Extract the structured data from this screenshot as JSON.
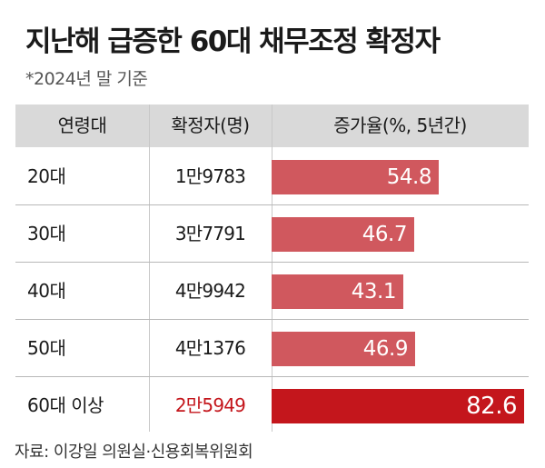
{
  "title": "지난해 급증한 60대 채무조정 확정자",
  "subtitle": "*2024년 말 기준",
  "source": "자료: 이강일 의원실·신용회복위원회",
  "colors": {
    "bar": "#d0585e",
    "highlight": "#c4161c",
    "header_bg": "#d9d9d9"
  },
  "chart_data": {
    "type": "table",
    "columns": [
      "연령대",
      "확정자(명)",
      "증가율(%, 5년간)"
    ],
    "rows": [
      {
        "age": "20대",
        "count": "1만9783",
        "rate": 54.8,
        "rate_label": "54.8"
      },
      {
        "age": "30대",
        "count": "3만7791",
        "rate": 46.7,
        "rate_label": "46.7"
      },
      {
        "age": "40대",
        "count": "4만9942",
        "rate": 43.1,
        "rate_label": "43.1"
      },
      {
        "age": "50대",
        "count": "4만1376",
        "rate": 46.9,
        "rate_label": "46.9"
      },
      {
        "age": "60대 이상",
        "count": "2만5949",
        "rate": 82.6,
        "rate_label": "82.6",
        "highlight": true
      }
    ]
  }
}
